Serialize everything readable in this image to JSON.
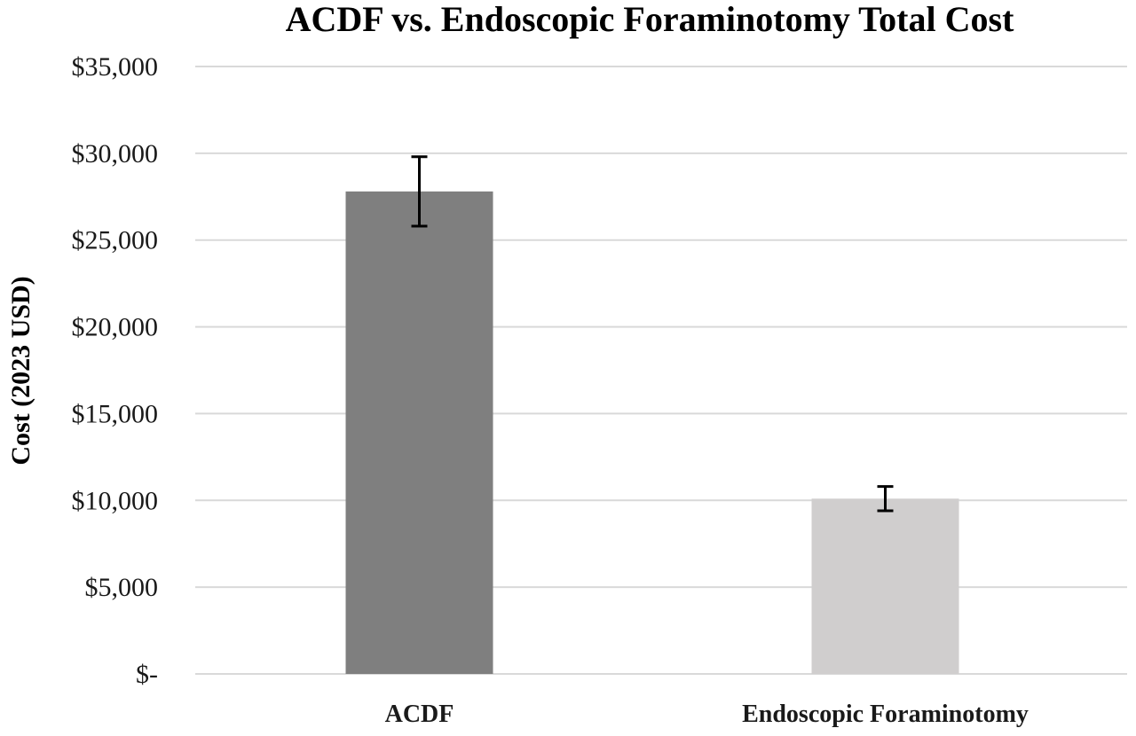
{
  "chart_data": {
    "type": "bar",
    "title": "ACDF vs. Endoscopic Foraminotomy Total Cost",
    "xlabel": "",
    "ylabel": "Cost (2023 USD)",
    "categories": [
      "ACDF",
      "Endoscopic Foraminotomy"
    ],
    "values": [
      27800,
      10100
    ],
    "error_low": [
      25800,
      9400
    ],
    "error_high": [
      29800,
      10800
    ],
    "ylim": [
      0,
      35000
    ],
    "yticks": [
      0,
      5000,
      10000,
      15000,
      20000,
      25000,
      30000,
      35000
    ],
    "ytick_labels": [
      "$-",
      "$5,000",
      "$10,000",
      "$15,000",
      "$20,000",
      "$25,000",
      "$30,000",
      "$35,000"
    ],
    "bar_colors": [
      "#7f7f7f",
      "#d0cece"
    ],
    "grid": true,
    "legend": "none"
  }
}
